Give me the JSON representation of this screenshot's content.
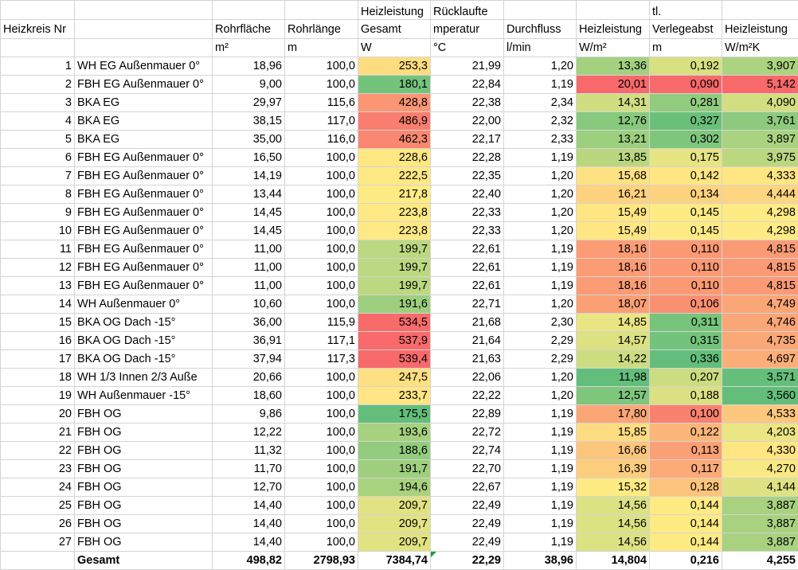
{
  "columns": [
    {
      "key": "nr",
      "h1": "",
      "h2": "Heizkreis Nr",
      "unit": ""
    },
    {
      "key": "name",
      "h1": "",
      "h2": "",
      "unit": ""
    },
    {
      "key": "rohrflaeche",
      "h1": "",
      "h2": "Rohrfläche",
      "unit": "m²"
    },
    {
      "key": "rohrlaenge",
      "h1": "",
      "h2": "Rohrlänge",
      "unit": "m"
    },
    {
      "key": "heizleistung_gesamt",
      "h1": "Heizleistung",
      "h2": "Gesamt",
      "unit": "W"
    },
    {
      "key": "ruecklauf",
      "h1": "Rücklaufte",
      "h2": "mperatur",
      "unit": "°C"
    },
    {
      "key": "durchfluss",
      "h1": "",
      "h2": "Durchfluss",
      "unit": "l/min"
    },
    {
      "key": "heizleistung_m2",
      "h1": "",
      "h2": "Heizleistung",
      "unit": "W/m²"
    },
    {
      "key": "verlegeabstand",
      "h1": "tl.",
      "h2": "Verlegeabst",
      "unit": "m"
    },
    {
      "key": "heizleistung_m2k",
      "h1": "",
      "h2": "Heizleistung",
      "unit": "W/m²K"
    }
  ],
  "rows": [
    {
      "nr": "1",
      "name": "WH EG Außenmauer 0°",
      "rohrflaeche": "18,96",
      "rohrlaenge": "100,0",
      "heizleistung_gesamt": "253,3",
      "ruecklauf": "21,99",
      "durchfluss": "1,20",
      "heizleistung_m2": "13,36",
      "verlegeabstand": "0,192",
      "heizleistung_m2k": "3,907"
    },
    {
      "nr": "2",
      "name": "FBH EG Außenmauer 0°",
      "rohrflaeche": "9,00",
      "rohrlaenge": "100,0",
      "heizleistung_gesamt": "180,1",
      "ruecklauf": "22,84",
      "durchfluss": "1,19",
      "heizleistung_m2": "20,01",
      "verlegeabstand": "0,090",
      "heizleistung_m2k": "5,142"
    },
    {
      "nr": "3",
      "name": "BKA EG",
      "rohrflaeche": "29,97",
      "rohrlaenge": "115,6",
      "heizleistung_gesamt": "428,8",
      "ruecklauf": "22,38",
      "durchfluss": "2,34",
      "heizleistung_m2": "14,31",
      "verlegeabstand": "0,281",
      "heizleistung_m2k": "4,090"
    },
    {
      "nr": "4",
      "name": "BKA EG",
      "rohrflaeche": "38,15",
      "rohrlaenge": "117,0",
      "heizleistung_gesamt": "486,9",
      "ruecklauf": "22,00",
      "durchfluss": "2,32",
      "heizleistung_m2": "12,76",
      "verlegeabstand": "0,327",
      "heizleistung_m2k": "3,761"
    },
    {
      "nr": "5",
      "name": "BKA EG",
      "rohrflaeche": "35,00",
      "rohrlaenge": "116,0",
      "heizleistung_gesamt": "462,3",
      "ruecklauf": "22,17",
      "durchfluss": "2,33",
      "heizleistung_m2": "13,21",
      "verlegeabstand": "0,302",
      "heizleistung_m2k": "3,897"
    },
    {
      "nr": "6",
      "name": "FBH EG Außenmauer 0°",
      "rohrflaeche": "16,50",
      "rohrlaenge": "100,0",
      "heizleistung_gesamt": "228,6",
      "ruecklauf": "22,28",
      "durchfluss": "1,19",
      "heizleistung_m2": "13,85",
      "verlegeabstand": "0,175",
      "heizleistung_m2k": "3,975"
    },
    {
      "nr": "7",
      "name": "FBH EG Außenmauer 0°",
      "rohrflaeche": "14,19",
      "rohrlaenge": "100,0",
      "heizleistung_gesamt": "222,5",
      "ruecklauf": "22,35",
      "durchfluss": "1,20",
      "heizleistung_m2": "15,68",
      "verlegeabstand": "0,142",
      "heizleistung_m2k": "4,333"
    },
    {
      "nr": "8",
      "name": "FBH EG Außenmauer 0°",
      "rohrflaeche": "13,44",
      "rohrlaenge": "100,0",
      "heizleistung_gesamt": "217,8",
      "ruecklauf": "22,40",
      "durchfluss": "1,20",
      "heizleistung_m2": "16,21",
      "verlegeabstand": "0,134",
      "heizleistung_m2k": "4,444"
    },
    {
      "nr": "9",
      "name": "FBH EG Außenmauer 0°",
      "rohrflaeche": "14,45",
      "rohrlaenge": "100,0",
      "heizleistung_gesamt": "223,8",
      "ruecklauf": "22,33",
      "durchfluss": "1,20",
      "heizleistung_m2": "15,49",
      "verlegeabstand": "0,145",
      "heizleistung_m2k": "4,298"
    },
    {
      "nr": "10",
      "name": "FBH EG Außenmauer 0°",
      "rohrflaeche": "14,45",
      "rohrlaenge": "100,0",
      "heizleistung_gesamt": "223,8",
      "ruecklauf": "22,33",
      "durchfluss": "1,20",
      "heizleistung_m2": "15,49",
      "verlegeabstand": "0,145",
      "heizleistung_m2k": "4,298"
    },
    {
      "nr": "11",
      "name": "FBH EG Außenmauer 0°",
      "rohrflaeche": "11,00",
      "rohrlaenge": "100,0",
      "heizleistung_gesamt": "199,7",
      "ruecklauf": "22,61",
      "durchfluss": "1,19",
      "heizleistung_m2": "18,16",
      "verlegeabstand": "0,110",
      "heizleistung_m2k": "4,815"
    },
    {
      "nr": "12",
      "name": "FBH EG Außenmauer 0°",
      "rohrflaeche": "11,00",
      "rohrlaenge": "100,0",
      "heizleistung_gesamt": "199,7",
      "ruecklauf": "22,61",
      "durchfluss": "1,19",
      "heizleistung_m2": "18,16",
      "verlegeabstand": "0,110",
      "heizleistung_m2k": "4,815"
    },
    {
      "nr": "13",
      "name": "FBH EG Außenmauer 0°",
      "rohrflaeche": "11,00",
      "rohrlaenge": "100,0",
      "heizleistung_gesamt": "199,7",
      "ruecklauf": "22,61",
      "durchfluss": "1,19",
      "heizleistung_m2": "18,16",
      "verlegeabstand": "0,110",
      "heizleistung_m2k": "4,815"
    },
    {
      "nr": "14",
      "name": "WH Außenmauer 0°",
      "rohrflaeche": "10,60",
      "rohrlaenge": "100,0",
      "heizleistung_gesamt": "191,6",
      "ruecklauf": "22,71",
      "durchfluss": "1,20",
      "heizleistung_m2": "18,07",
      "verlegeabstand": "0,106",
      "heizleistung_m2k": "4,749"
    },
    {
      "nr": "15",
      "name": "BKA OG Dach -15°",
      "rohrflaeche": "36,00",
      "rohrlaenge": "115,9",
      "heizleistung_gesamt": "534,5",
      "ruecklauf": "21,68",
      "durchfluss": "2,30",
      "heizleistung_m2": "14,85",
      "verlegeabstand": "0,311",
      "heizleistung_m2k": "4,746"
    },
    {
      "nr": "16",
      "name": "BKA OG Dach -15°",
      "rohrflaeche": "36,91",
      "rohrlaenge": "117,1",
      "heizleistung_gesamt": "537,9",
      "ruecklauf": "21,64",
      "durchfluss": "2,29",
      "heizleistung_m2": "14,57",
      "verlegeabstand": "0,315",
      "heizleistung_m2k": "4,735"
    },
    {
      "nr": "17",
      "name": "BKA OG Dach -15°",
      "rohrflaeche": "37,94",
      "rohrlaenge": "117,3",
      "heizleistung_gesamt": "539,4",
      "ruecklauf": "21,63",
      "durchfluss": "2,29",
      "heizleistung_m2": "14,22",
      "verlegeabstand": "0,336",
      "heizleistung_m2k": "4,697"
    },
    {
      "nr": "18",
      "name": " WH 1/3 Innen 2/3 Auße",
      "rohrflaeche": "20,66",
      "rohrlaenge": "100,0",
      "heizleistung_gesamt": "247,5",
      "ruecklauf": "22,06",
      "durchfluss": "1,20",
      "heizleistung_m2": "11,98",
      "verlegeabstand": "0,207",
      "heizleistung_m2k": "3,571"
    },
    {
      "nr": "19",
      "name": "WH Außenmauer -15°",
      "rohrflaeche": "18,60",
      "rohrlaenge": "100,0",
      "heizleistung_gesamt": "233,7",
      "ruecklauf": "22,22",
      "durchfluss": "1,20",
      "heizleistung_m2": "12,57",
      "verlegeabstand": "0,188",
      "heizleistung_m2k": "3,560"
    },
    {
      "nr": "20",
      "name": "FBH OG",
      "rohrflaeche": "9,86",
      "rohrlaenge": "100,0",
      "heizleistung_gesamt": "175,5",
      "ruecklauf": "22,89",
      "durchfluss": "1,19",
      "heizleistung_m2": "17,80",
      "verlegeabstand": "0,100",
      "heizleistung_m2k": "4,533"
    },
    {
      "nr": "21",
      "name": "FBH OG",
      "rohrflaeche": "12,22",
      "rohrlaenge": "100,0",
      "heizleistung_gesamt": "193,6",
      "ruecklauf": "22,72",
      "durchfluss": "1,19",
      "heizleistung_m2": "15,85",
      "verlegeabstand": "0,122",
      "heizleistung_m2k": "4,203"
    },
    {
      "nr": "22",
      "name": "FBH OG",
      "rohrflaeche": "11,32",
      "rohrlaenge": "100,0",
      "heizleistung_gesamt": "188,6",
      "ruecklauf": "22,74",
      "durchfluss": "1,19",
      "heizleistung_m2": "16,66",
      "verlegeabstand": "0,113",
      "heizleistung_m2k": "4,330"
    },
    {
      "nr": "23",
      "name": "FBH OG",
      "rohrflaeche": "11,70",
      "rohrlaenge": "100,0",
      "heizleistung_gesamt": "191,7",
      "ruecklauf": "22,70",
      "durchfluss": "1,19",
      "heizleistung_m2": "16,39",
      "verlegeabstand": "0,117",
      "heizleistung_m2k": "4,270"
    },
    {
      "nr": "24",
      "name": "FBH OG",
      "rohrflaeche": "12,70",
      "rohrlaenge": "100,0",
      "heizleistung_gesamt": "194,6",
      "ruecklauf": "22,67",
      "durchfluss": "1,19",
      "heizleistung_m2": "15,32",
      "verlegeabstand": "0,128",
      "heizleistung_m2k": "4,144"
    },
    {
      "nr": "25",
      "name": "FBH OG",
      "rohrflaeche": "14,40",
      "rohrlaenge": "100,0",
      "heizleistung_gesamt": "209,7",
      "ruecklauf": "22,49",
      "durchfluss": "1,19",
      "heizleistung_m2": "14,56",
      "verlegeabstand": "0,144",
      "heizleistung_m2k": "3,887"
    },
    {
      "nr": "26",
      "name": "FBH OG",
      "rohrflaeche": "14,40",
      "rohrlaenge": "100,0",
      "heizleistung_gesamt": "209,7",
      "ruecklauf": "22,49",
      "durchfluss": "1,19",
      "heizleistung_m2": "14,56",
      "verlegeabstand": "0,144",
      "heizleistung_m2k": "3,887"
    },
    {
      "nr": "27",
      "name": "FBH OG",
      "rohrflaeche": "14,40",
      "rohrlaenge": "100,0",
      "heizleistung_gesamt": "209,7",
      "ruecklauf": "22,49",
      "durchfluss": "1,19",
      "heizleistung_m2": "14,56",
      "verlegeabstand": "0,144",
      "heizleistung_m2k": "3,887"
    }
  ],
  "total": {
    "nr": "",
    "name": "Gesamt",
    "rohrflaeche": "498,82",
    "rohrlaenge": "2798,93",
    "heizleistung_gesamt": "7384,74",
    "ruecklauf": "22,29",
    "durchfluss": "38,96",
    "heizleistung_m2": "14,804",
    "verlegeabstand": "0,216",
    "heizleistung_m2k": "4,255"
  },
  "colors": {
    "green": "#63be7b",
    "yellow": "#ffeb84",
    "red": "#f8696b",
    "grid": "#d4d4d4"
  }
}
